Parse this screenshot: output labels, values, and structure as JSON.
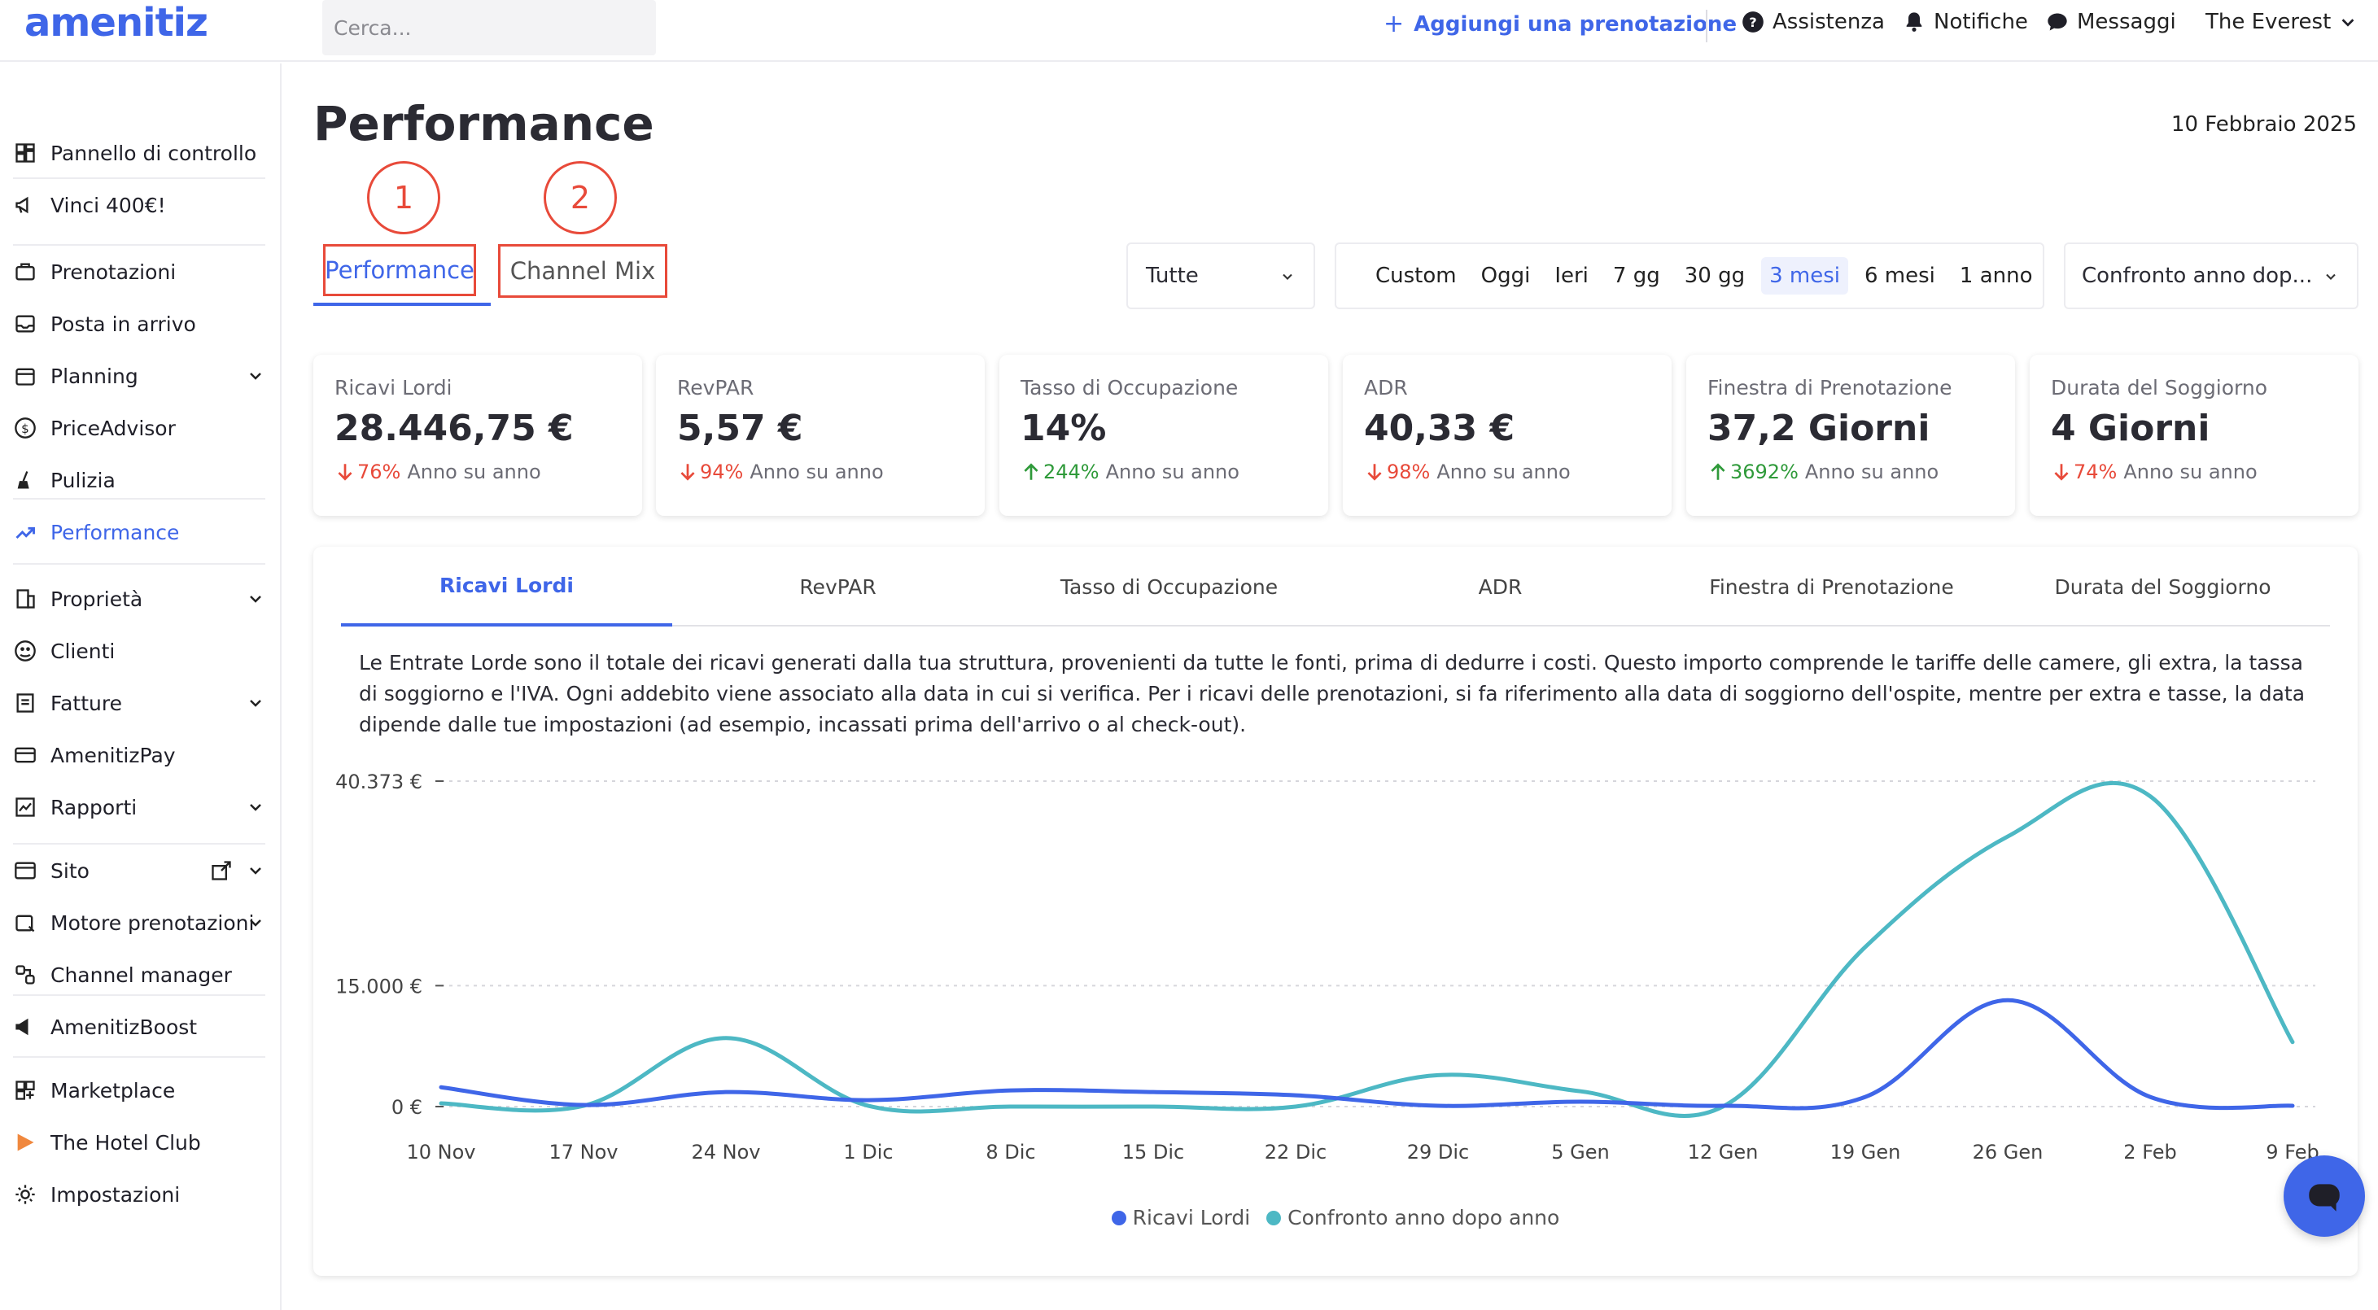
{
  "header": {
    "logo": "amenitiz",
    "search_placeholder": "Cerca...",
    "add_booking": "Aggiungi una prenotazione",
    "help": "Assistenza",
    "notifications": "Notifiche",
    "messages": "Messaggi",
    "property": "The Everest"
  },
  "sidebar": {
    "items": [
      {
        "label": "Pannello di controllo",
        "icon": "dashboard-icon"
      },
      {
        "label": "Vinci 400€!",
        "icon": "megaphone-icon"
      },
      {
        "label": "Prenotazioni",
        "icon": "suitcase-icon"
      },
      {
        "label": "Posta in arrivo",
        "icon": "inbox-icon"
      },
      {
        "label": "Planning",
        "icon": "calendar-icon"
      },
      {
        "label": "PriceAdvisor",
        "icon": "dollar-icon"
      },
      {
        "label": "Pulizia",
        "icon": "broom-icon"
      },
      {
        "label": "Performance",
        "icon": "trend-icon"
      },
      {
        "label": "Proprietà",
        "icon": "building-icon"
      },
      {
        "label": "Clienti",
        "icon": "guests-icon"
      },
      {
        "label": "Fatture",
        "icon": "invoice-icon"
      },
      {
        "label": "AmenitizPay",
        "icon": "card-icon"
      },
      {
        "label": "Rapporti",
        "icon": "report-icon"
      },
      {
        "label": "Sito",
        "icon": "browser-icon"
      },
      {
        "label": "Motore prenotazioni",
        "icon": "booking-engine-icon"
      },
      {
        "label": "Channel manager",
        "icon": "channels-icon"
      },
      {
        "label": "AmenitizBoost",
        "icon": "boost-icon"
      },
      {
        "label": "Marketplace",
        "icon": "marketplace-icon"
      },
      {
        "label": "The Hotel Club",
        "icon": "hotel-club-icon"
      },
      {
        "label": "Impostazioni",
        "icon": "gear-icon"
      }
    ]
  },
  "page": {
    "title": "Performance",
    "date": "10 Febbraio 2025",
    "annotation_1": "1",
    "annotation_2": "2",
    "tabs": [
      "Performance",
      "Channel Mix"
    ],
    "filter_all": "Tutte",
    "ranges": [
      "Custom",
      "Oggi",
      "Ieri",
      "7 gg",
      "30 gg",
      "3 mesi",
      "6 mesi",
      "1 anno"
    ],
    "active_range": "3 mesi",
    "compare": "Confronto anno dop..."
  },
  "kpis": [
    {
      "label": "Ricavi Lordi",
      "value": "28.446,75 €",
      "change": "76%",
      "direction": "down",
      "suffix": "Anno su anno"
    },
    {
      "label": "RevPAR",
      "value": "5,57 €",
      "change": "94%",
      "direction": "down",
      "suffix": "Anno su anno"
    },
    {
      "label": "Tasso di Occupazione",
      "value": "14%",
      "change": "244%",
      "direction": "up",
      "suffix": "Anno su anno"
    },
    {
      "label": "ADR",
      "value": "40,33 €",
      "change": "98%",
      "direction": "down",
      "suffix": "Anno su anno"
    },
    {
      "label": "Finestra di Prenotazione",
      "value": "37,2 Giorni",
      "change": "3692%",
      "direction": "up",
      "suffix": "Anno su anno"
    },
    {
      "label": "Durata del Soggiorno",
      "value": "4 Giorni",
      "change": "74%",
      "direction": "down",
      "suffix": "Anno su anno"
    }
  ],
  "metric_tabs": [
    "Ricavi Lordi",
    "RevPAR",
    "Tasso di Occupazione",
    "ADR",
    "Finestra di Prenotazione",
    "Durata del Soggiorno"
  ],
  "description": "Le Entrate Lorde sono il totale dei ricavi generati dalla tua struttura, provenienti da tutte le fonti, prima di dedurre i costi. Questo importo comprende le tariffe delle camere, gli extra, la tassa di soggiorno e l'IVA. Ogni addebito viene associato alla data in cui si verifica. Per i ricavi delle prenotazioni, si fa riferimento alla data di soggiorno dell'ospite, mentre per extra e tasse, la data dipende dalle tue impostazioni (ad esempio, incassati prima dell'arrivo o al check-out).",
  "colors": {
    "accent": "#3f66e8",
    "compare": "#4db8c4",
    "down": "#e84a3a",
    "up": "#2f9a3a"
  },
  "chart_data": {
    "type": "line",
    "x": [
      "10 Nov",
      "17 Nov",
      "24 Nov",
      "1 Dic",
      "8 Dic",
      "15 Dic",
      "22 Dic",
      "29 Dic",
      "5 Gen",
      "12 Gen",
      "19 Gen",
      "26 Gen",
      "2 Feb",
      "9 Feb"
    ],
    "y_ticks": [
      {
        "value": 40373,
        "label": "40.373 €"
      },
      {
        "value": 15000,
        "label": "15.000 €"
      },
      {
        "value": 0,
        "label": "0 €"
      }
    ],
    "ylim": [
      0,
      40373
    ],
    "grid": true,
    "legend_position": "bottom",
    "series": [
      {
        "name": "Ricavi Lordi",
        "color": "#3f66e8",
        "values": [
          2400,
          200,
          1800,
          800,
          2000,
          1800,
          1400,
          100,
          600,
          100,
          1200,
          13200,
          1200,
          100
        ]
      },
      {
        "name": "Confronto anno dopo anno",
        "color": "#4db8c4",
        "values": [
          400,
          100,
          8500,
          100,
          0,
          0,
          0,
          3900,
          1900,
          0,
          19800,
          33500,
          38500,
          8000
        ]
      }
    ]
  }
}
